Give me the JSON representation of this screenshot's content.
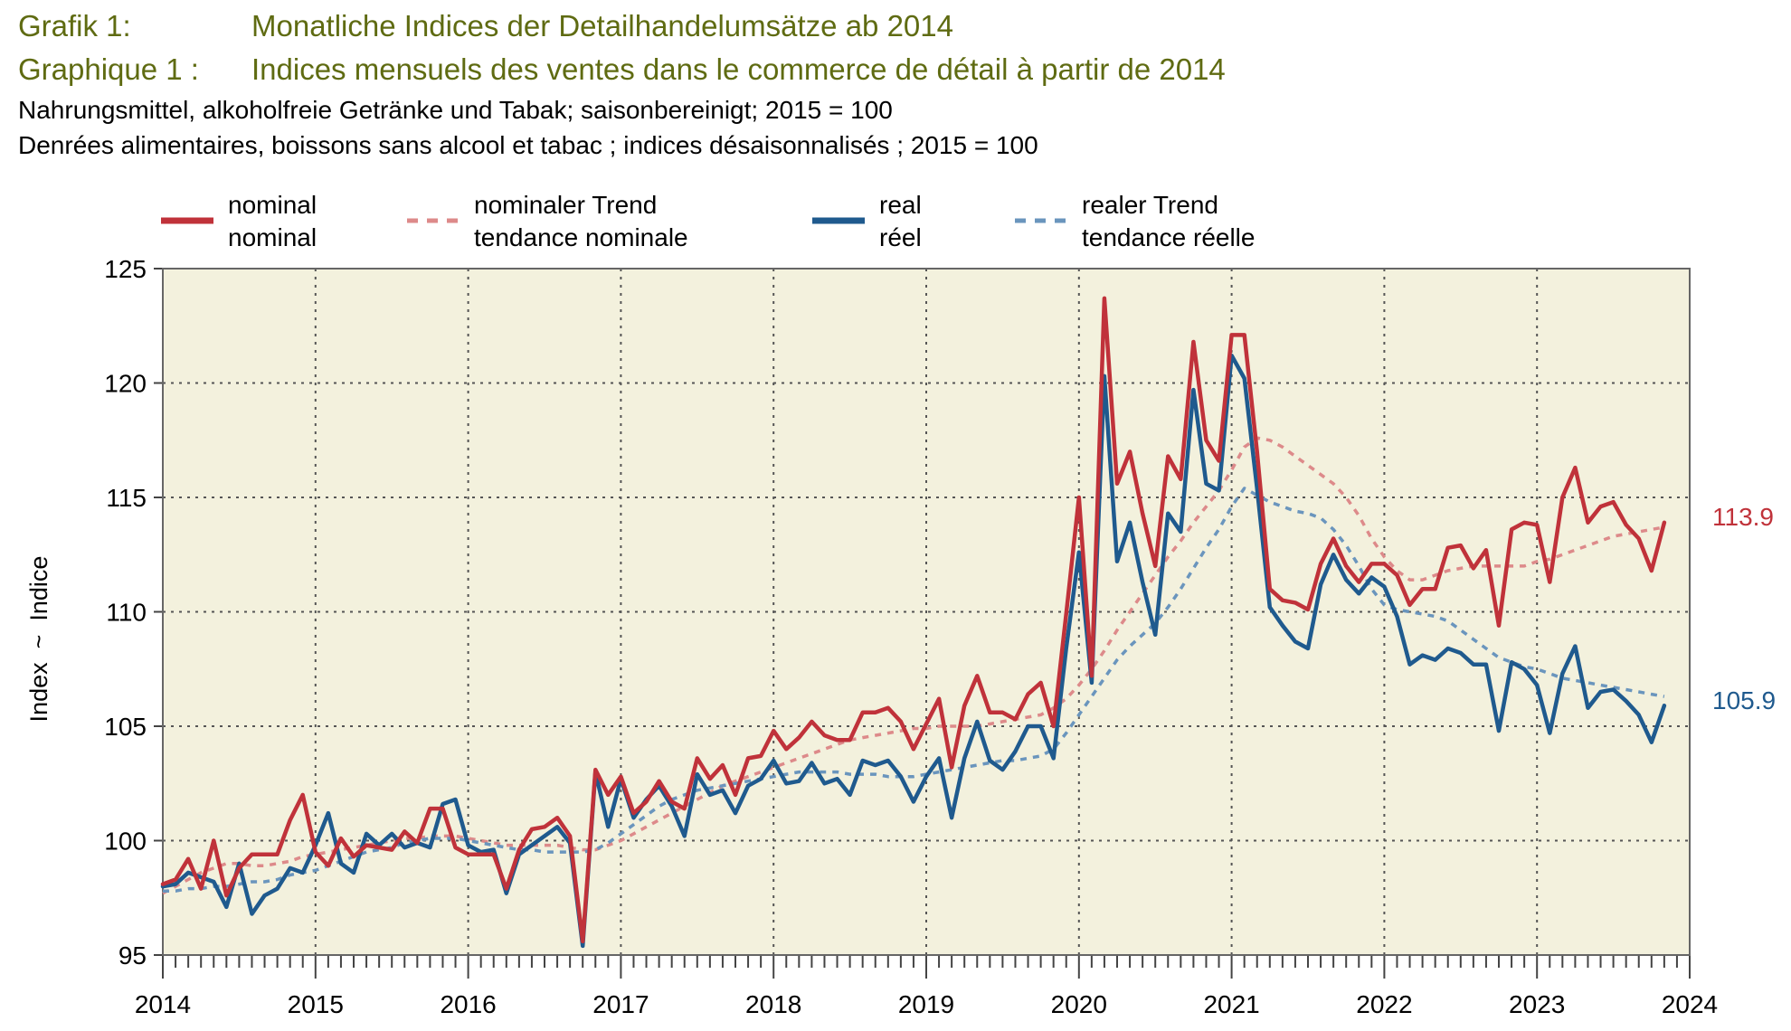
{
  "header": {
    "line1_num": "Grafik 1:",
    "line1_title": "Monatliche Indices der Detailhandelumsätze ab 2014",
    "line2_num": "Graphique 1 :",
    "line2_title": "Indices mensuels des ventes dans le commerce de détail à partir de 2014",
    "line3": "Nahrungsmittel, alkoholfreie Getränke und Tabak; saisonbereinigt; 2015 = 100",
    "line4": "Denrées alimentaires, boissons sans alcool et tabac ; indices désaisonnalisés ; 2015 = 100"
  },
  "colors": {
    "nominal": "#c0323a",
    "nominal_trend": "#dd8a8a",
    "real": "#1f5a8e",
    "real_trend": "#6a95bd",
    "plot_bg": "#f3f1dd"
  },
  "chart_data": {
    "type": "line",
    "ylabel": "Index  ~  Indice",
    "ylim": [
      95,
      125
    ],
    "yticks": [
      95,
      100,
      105,
      110,
      115,
      120,
      125
    ],
    "xlim": [
      2014,
      2024
    ],
    "xticks": [
      "2014",
      "2015",
      "2016",
      "2017",
      "2018",
      "2019",
      "2020",
      "2021",
      "2022",
      "2023",
      "2024"
    ],
    "grid": true,
    "legend_position": "top",
    "end_labels": {
      "nominal": "113.9",
      "real": "105.9"
    },
    "series": [
      {
        "key": "nominal",
        "name": "nominal",
        "name_fr": "nominal",
        "style": "solid",
        "start": "2014-01",
        "values": [
          98.1,
          98.3,
          99.2,
          97.9,
          100.0,
          97.6,
          98.8,
          99.4,
          99.4,
          99.4,
          100.9,
          102.0,
          99.5,
          98.9,
          100.1,
          99.3,
          99.8,
          99.7,
          99.6,
          100.4,
          99.9,
          101.4,
          101.4,
          99.7,
          99.4,
          99.4,
          99.4,
          97.9,
          99.6,
          100.5,
          100.6,
          101.0,
          100.2,
          95.6,
          103.1,
          102.0,
          102.8,
          101.2,
          101.7,
          102.6,
          101.7,
          101.4,
          103.6,
          102.7,
          103.3,
          102.0,
          103.6,
          103.7,
          104.8,
          104.0,
          104.5,
          105.2,
          104.6,
          104.4,
          104.4,
          105.6,
          105.6,
          105.8,
          105.2,
          104.0,
          105.1,
          106.2,
          103.2,
          105.9,
          107.2,
          105.6,
          105.6,
          105.3,
          106.4,
          106.9,
          105.0,
          109.9,
          115.0,
          107.2,
          123.7,
          115.6,
          117.0,
          114.3,
          112.0,
          116.8,
          115.8,
          121.8,
          117.5,
          116.6,
          122.1,
          122.1,
          117.0,
          111.0,
          110.5,
          110.4,
          110.1,
          112.1,
          113.2,
          112.0,
          111.3,
          112.1,
          112.1,
          111.6,
          110.3,
          111.0,
          111.0,
          112.8,
          112.9,
          111.9,
          112.7,
          109.4,
          113.6,
          113.9,
          113.8,
          111.3,
          115.0,
          116.3,
          113.9,
          114.6,
          114.8,
          113.8,
          113.2,
          111.8,
          113.9
        ]
      },
      {
        "key": "nominal_trend",
        "name": "nominaler Trend",
        "name_fr": "tendance nominale",
        "style": "dashed",
        "start": "2014-01",
        "values": [
          97.7,
          98.0,
          98.3,
          98.6,
          98.8,
          99.0,
          99.0,
          98.9,
          98.9,
          99.0,
          99.1,
          99.3,
          99.4,
          99.5,
          99.6,
          99.7,
          99.8,
          99.9,
          100.0,
          100.1,
          100.1,
          100.2,
          100.2,
          100.2,
          100.1,
          100.0,
          99.9,
          99.8,
          99.8,
          99.8,
          99.8,
          99.8,
          99.7,
          99.6,
          99.6,
          99.8,
          100.0,
          100.3,
          100.6,
          100.9,
          101.2,
          101.5,
          101.8,
          102.1,
          102.4,
          102.6,
          102.8,
          103.0,
          103.2,
          103.4,
          103.6,
          103.8,
          104.0,
          104.2,
          104.4,
          104.5,
          104.6,
          104.7,
          104.8,
          104.9,
          104.9,
          105.0,
          105.0,
          105.0,
          105.0,
          105.1,
          105.2,
          105.3,
          105.4,
          105.5,
          105.8,
          106.2,
          106.8,
          107.5,
          108.3,
          109.2,
          110.0,
          110.8,
          111.6,
          112.4,
          113.1,
          113.9,
          114.6,
          115.3,
          116.2,
          117.2,
          117.6,
          117.5,
          117.2,
          116.8,
          116.4,
          116.0,
          115.6,
          115.0,
          114.2,
          113.2,
          112.4,
          111.8,
          111.4,
          111.4,
          111.6,
          111.8,
          111.9,
          112.0,
          112.0,
          112.0,
          112.0,
          112.0,
          112.2,
          112.3,
          112.5,
          112.7,
          112.9,
          113.1,
          113.3,
          113.4,
          113.5,
          113.6,
          113.7
        ]
      },
      {
        "key": "real",
        "name": "real",
        "name_fr": "réel",
        "style": "solid",
        "start": "2014-01",
        "values": [
          98.0,
          98.1,
          98.6,
          98.4,
          98.2,
          97.1,
          99.0,
          96.8,
          97.6,
          97.9,
          98.8,
          98.6,
          99.8,
          101.2,
          99.0,
          98.6,
          100.3,
          99.8,
          100.3,
          99.7,
          99.9,
          99.7,
          101.6,
          101.8,
          99.8,
          99.5,
          99.6,
          97.7,
          99.4,
          99.8,
          100.2,
          100.6,
          99.9,
          95.4,
          103.0,
          100.6,
          102.7,
          101.0,
          101.8,
          102.4,
          101.5,
          100.2,
          102.9,
          102.0,
          102.2,
          101.2,
          102.4,
          102.7,
          103.5,
          102.5,
          102.6,
          103.4,
          102.5,
          102.7,
          102.0,
          103.5,
          103.3,
          103.5,
          102.8,
          101.7,
          102.8,
          103.6,
          101.0,
          103.6,
          105.2,
          103.5,
          103.1,
          103.9,
          105.0,
          105.0,
          103.6,
          108.4,
          112.6,
          106.9,
          120.3,
          112.2,
          113.9,
          111.3,
          109.0,
          114.3,
          113.5,
          119.7,
          115.6,
          115.3,
          121.2,
          120.2,
          115.4,
          110.2,
          109.4,
          108.7,
          108.4,
          111.2,
          112.5,
          111.4,
          110.8,
          111.5,
          111.1,
          109.8,
          107.7,
          108.1,
          107.9,
          108.4,
          108.2,
          107.7,
          107.7,
          104.8,
          107.8,
          107.5,
          106.8,
          104.7,
          107.3,
          108.5,
          105.8,
          106.5,
          106.6,
          106.1,
          105.5,
          104.3,
          105.9
        ]
      },
      {
        "key": "real_trend",
        "name": "realer Trend",
        "name_fr": "tendance réelle",
        "style": "dashed",
        "start": "2014-01",
        "values": [
          97.8,
          97.8,
          97.9,
          97.9,
          98.0,
          98.0,
          98.1,
          98.2,
          98.2,
          98.3,
          98.5,
          98.6,
          98.7,
          98.9,
          99.1,
          99.3,
          99.5,
          99.6,
          99.7,
          99.9,
          100.0,
          100.1,
          100.1,
          100.1,
          100.0,
          99.9,
          99.8,
          99.7,
          99.6,
          99.6,
          99.5,
          99.5,
          99.5,
          99.5,
          99.6,
          99.9,
          100.3,
          100.7,
          101.1,
          101.5,
          101.8,
          102.0,
          102.2,
          102.3,
          102.4,
          102.5,
          102.6,
          102.7,
          102.8,
          102.9,
          103.0,
          103.0,
          103.0,
          103.0,
          102.9,
          102.9,
          102.9,
          102.8,
          102.8,
          102.8,
          102.9,
          103.0,
          103.1,
          103.2,
          103.3,
          103.4,
          103.5,
          103.5,
          103.6,
          103.7,
          104.0,
          104.7,
          105.5,
          106.3,
          107.1,
          107.9,
          108.5,
          109.0,
          109.5,
          110.2,
          111.0,
          111.9,
          112.8,
          113.6,
          114.6,
          115.4,
          115.1,
          114.8,
          114.6,
          114.4,
          114.3,
          114.1,
          113.6,
          112.9,
          112.0,
          111.0,
          110.3,
          110.1,
          110.0,
          109.9,
          109.8,
          109.6,
          109.2,
          108.8,
          108.4,
          108.0,
          107.8,
          107.6,
          107.5,
          107.3,
          107.1,
          107.0,
          106.9,
          106.8,
          106.7,
          106.6,
          106.5,
          106.4,
          106.3
        ]
      }
    ]
  }
}
